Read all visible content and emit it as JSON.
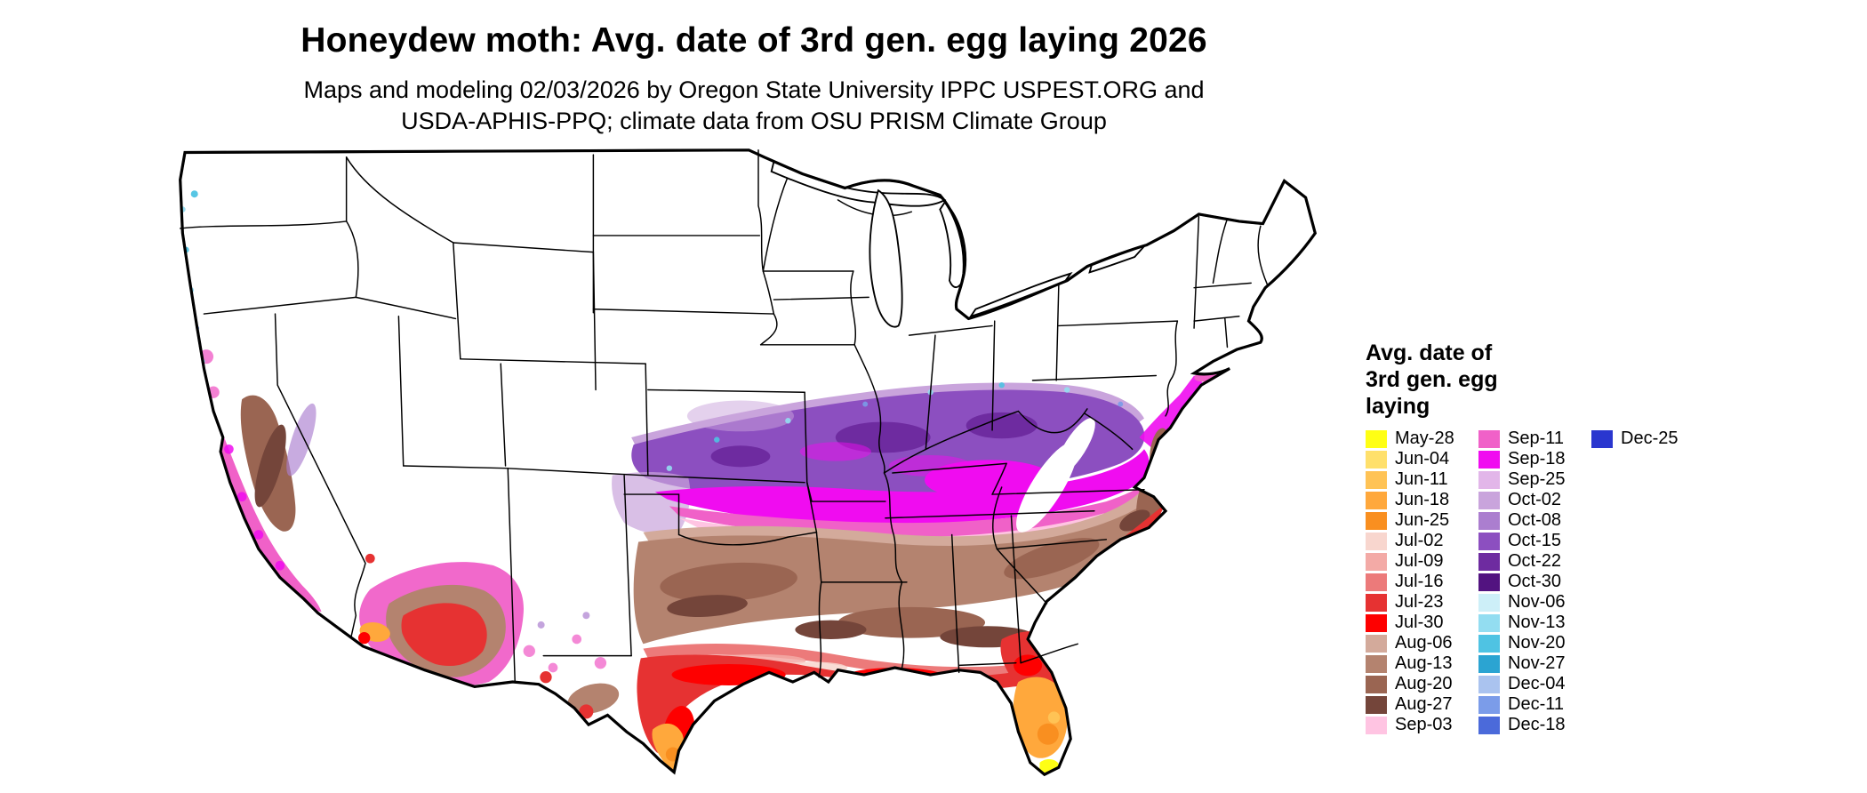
{
  "title": "Honeydew moth: Avg. date of 3rd gen. egg laying 2026",
  "subtitle": {
    "line1": "Maps and modeling 02/03/2026 by Oregon State University IPPC USPEST.ORG and",
    "line2": "USDA-APHIS-PPQ; climate data from OSU PRISM Climate Group"
  },
  "legend": {
    "title": "Avg. date of\n3rd gen. egg\nlaying",
    "columns": [
      [
        {
          "label": "May-28",
          "color": "#ffff14"
        },
        {
          "label": "Jun-04",
          "color": "#ffe06b"
        },
        {
          "label": "Jun-11",
          "color": "#ffc355"
        },
        {
          "label": "Jun-18",
          "color": "#ffa83c"
        },
        {
          "label": "Jun-25",
          "color": "#f98f20"
        },
        {
          "label": "Jul-02",
          "color": "#f8d6ce"
        },
        {
          "label": "Jul-09",
          "color": "#f3aaa6"
        },
        {
          "label": "Jul-16",
          "color": "#ec7a7a"
        },
        {
          "label": "Jul-23",
          "color": "#e63232"
        },
        {
          "label": "Jul-30",
          "color": "#fe0000"
        },
        {
          "label": "Aug-06",
          "color": "#d3aa9b"
        },
        {
          "label": "Aug-13",
          "color": "#b4836f"
        },
        {
          "label": "Aug-20",
          "color": "#9a6552"
        },
        {
          "label": "Aug-27",
          "color": "#74453a"
        },
        {
          "label": "Sep-03",
          "color": "#ffc4e2"
        }
      ],
      [
        {
          "label": "Sep-11",
          "color": "#f061c8"
        },
        {
          "label": "Sep-18",
          "color": "#f00cf0"
        },
        {
          "label": "Sep-25",
          "color": "#e2b6e9"
        },
        {
          "label": "Oct-02",
          "color": "#c9a4dc"
        },
        {
          "label": "Oct-08",
          "color": "#ab7ecf"
        },
        {
          "label": "Oct-15",
          "color": "#8c4fc0"
        },
        {
          "label": "Oct-22",
          "color": "#6e2ba0"
        },
        {
          "label": "Oct-30",
          "color": "#521380"
        },
        {
          "label": "Nov-06",
          "color": "#cdeff8"
        },
        {
          "label": "Nov-13",
          "color": "#93ddf1"
        },
        {
          "label": "Nov-20",
          "color": "#4fc3e3"
        },
        {
          "label": "Nov-27",
          "color": "#2ba4d2"
        },
        {
          "label": "Dec-04",
          "color": "#aac3ef"
        },
        {
          "label": "Dec-11",
          "color": "#7b9ce9"
        },
        {
          "label": "Dec-18",
          "color": "#4b6ada"
        }
      ],
      [
        {
          "label": "Dec-25",
          "color": "#2a36cf"
        }
      ]
    ]
  }
}
